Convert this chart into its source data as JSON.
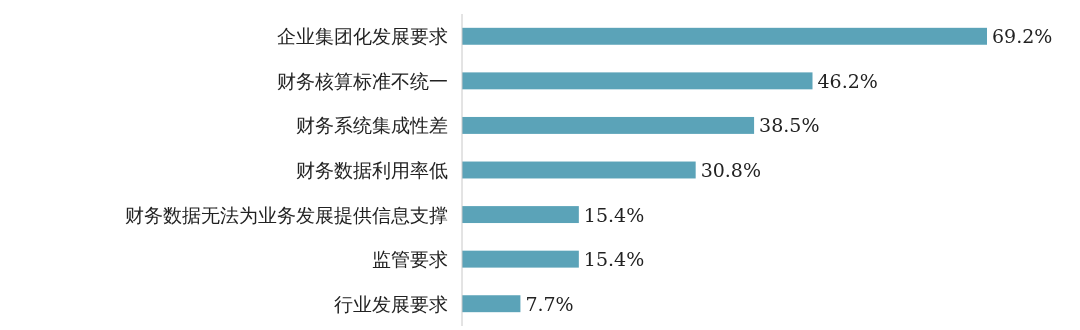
{
  "chart_data": {
    "type": "bar",
    "orientation": "horizontal",
    "categories": [
      "企业集团化发展要求",
      "财务核算标准不统一",
      "财务系统集成性差",
      "财务数据利用率低",
      "财务数据无法为业务发展提供信息支撑",
      "监管要求",
      "行业发展要求"
    ],
    "values": [
      69.2,
      46.2,
      38.5,
      30.8,
      15.4,
      15.4,
      7.7
    ],
    "value_labels": [
      "69.2%",
      "46.2%",
      "38.5%",
      "30.8%",
      "15.4%",
      "15.4%",
      "7.7%"
    ],
    "color": "#5ba3b8"
  }
}
